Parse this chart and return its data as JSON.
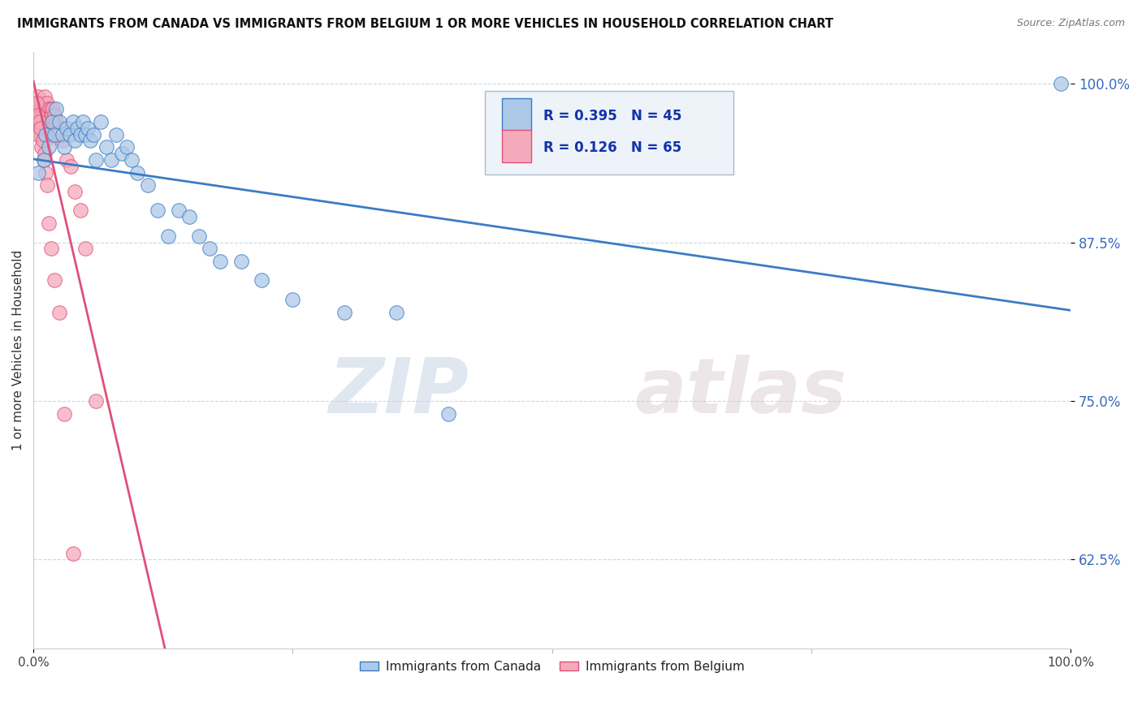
{
  "title": "IMMIGRANTS FROM CANADA VS IMMIGRANTS FROM BELGIUM 1 OR MORE VEHICLES IN HOUSEHOLD CORRELATION CHART",
  "source": "Source: ZipAtlas.com",
  "ylabel": "1 or more Vehicles in Household",
  "xlim": [
    0.0,
    1.0
  ],
  "ylim": [
    0.555,
    1.025
  ],
  "yticks": [
    0.625,
    0.75,
    0.875,
    1.0
  ],
  "yticklabels": [
    "62.5%",
    "75.0%",
    "87.5%",
    "100.0%"
  ],
  "canada_R": 0.395,
  "canada_N": 45,
  "belgium_R": 0.126,
  "belgium_N": 65,
  "canada_color": "#adc9e8",
  "belgium_color": "#f5aabb",
  "canada_line_color": "#3a7cc4",
  "belgium_line_color": "#e0507a",
  "watermark_zip": "ZIP",
  "watermark_atlas": "atlas",
  "canada_x": [
    0.005,
    0.01,
    0.012,
    0.015,
    0.018,
    0.02,
    0.022,
    0.025,
    0.028,
    0.03,
    0.032,
    0.035,
    0.038,
    0.04,
    0.042,
    0.045,
    0.048,
    0.05,
    0.052,
    0.055,
    0.058,
    0.06,
    0.065,
    0.07,
    0.075,
    0.08,
    0.085,
    0.09,
    0.095,
    0.1,
    0.11,
    0.12,
    0.13,
    0.14,
    0.15,
    0.16,
    0.17,
    0.18,
    0.2,
    0.22,
    0.25,
    0.3,
    0.35,
    0.4,
    0.99
  ],
  "canada_y": [
    0.93,
    0.94,
    0.96,
    0.95,
    0.97,
    0.96,
    0.98,
    0.97,
    0.96,
    0.95,
    0.965,
    0.96,
    0.97,
    0.955,
    0.965,
    0.96,
    0.97,
    0.96,
    0.965,
    0.955,
    0.96,
    0.94,
    0.97,
    0.95,
    0.94,
    0.96,
    0.945,
    0.95,
    0.94,
    0.93,
    0.92,
    0.9,
    0.88,
    0.9,
    0.895,
    0.88,
    0.87,
    0.86,
    0.86,
    0.845,
    0.83,
    0.82,
    0.82,
    0.74,
    1.0
  ],
  "belgium_x": [
    0.003,
    0.004,
    0.005,
    0.005,
    0.006,
    0.006,
    0.007,
    0.007,
    0.008,
    0.008,
    0.008,
    0.009,
    0.009,
    0.01,
    0.01,
    0.01,
    0.011,
    0.011,
    0.012,
    0.012,
    0.012,
    0.013,
    0.013,
    0.014,
    0.014,
    0.015,
    0.015,
    0.016,
    0.016,
    0.017,
    0.017,
    0.018,
    0.018,
    0.019,
    0.019,
    0.02,
    0.02,
    0.021,
    0.022,
    0.023,
    0.025,
    0.028,
    0.032,
    0.036,
    0.04,
    0.045,
    0.05,
    0.06,
    0.003,
    0.004,
    0.005,
    0.006,
    0.007,
    0.008,
    0.009,
    0.01,
    0.011,
    0.012,
    0.013,
    0.015,
    0.017,
    0.02,
    0.025,
    0.03,
    0.038
  ],
  "belgium_y": [
    0.975,
    0.98,
    0.99,
    0.97,
    0.985,
    0.96,
    0.98,
    0.97,
    0.975,
    0.985,
    0.96,
    0.975,
    0.98,
    0.97,
    0.985,
    0.96,
    0.975,
    0.99,
    0.965,
    0.98,
    0.955,
    0.97,
    0.985,
    0.96,
    0.975,
    0.97,
    0.98,
    0.965,
    0.975,
    0.96,
    0.98,
    0.97,
    0.975,
    0.965,
    0.98,
    0.96,
    0.975,
    0.965,
    0.97,
    0.96,
    0.965,
    0.955,
    0.94,
    0.935,
    0.915,
    0.9,
    0.87,
    0.75,
    0.985,
    0.975,
    0.96,
    0.97,
    0.965,
    0.95,
    0.955,
    0.94,
    0.945,
    0.93,
    0.92,
    0.89,
    0.87,
    0.845,
    0.82,
    0.74,
    0.63
  ]
}
